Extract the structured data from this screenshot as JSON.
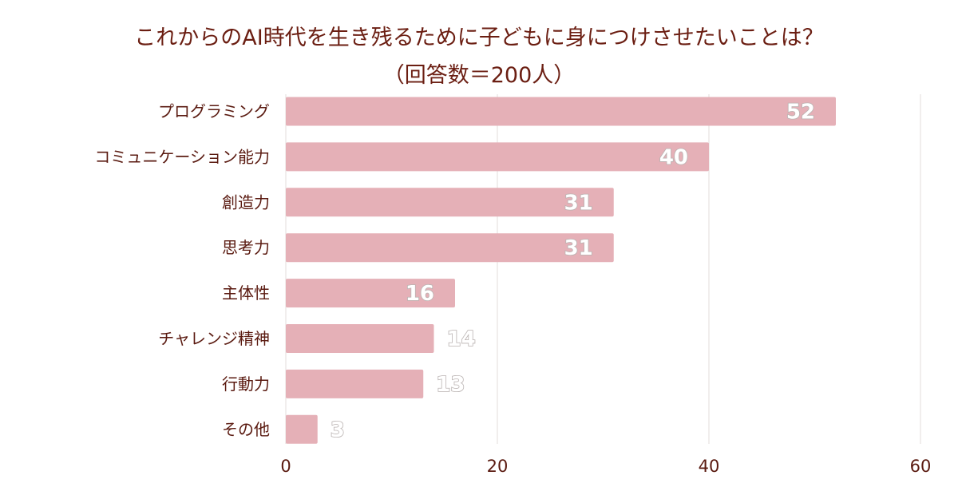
{
  "title": {
    "line1": "これからのAI時代を生き残るために子どもに身につけさせたいことは？",
    "line2": "（回答数＝200人）"
  },
  "colors": {
    "bar": "#e5b0b7",
    "grid": "#e3dcdb",
    "text": "#6b1e12"
  },
  "chart_data": {
    "type": "bar",
    "orientation": "horizontal",
    "title": "これからのAI時代を生き残るために子どもに身につけさせたいことは？（回答数＝200人）",
    "categories": [
      "プログラミング",
      "コミュニケーション能力",
      "創造力",
      "思考力",
      "主体性",
      "チャレンジ精神",
      "行動力",
      "その他"
    ],
    "values": [
      52,
      40,
      31,
      31,
      16,
      14,
      13,
      3
    ],
    "xlim": [
      0,
      60
    ],
    "xticks": [
      0,
      20,
      40,
      60
    ],
    "xlabel": "",
    "ylabel": "",
    "grid": true,
    "legend": "none"
  }
}
